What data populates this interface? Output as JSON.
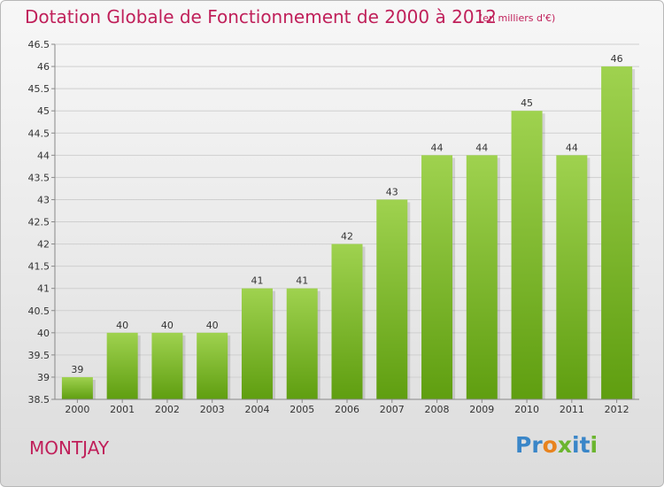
{
  "title": "Dotation Globale de Fonctionnement de 2000 à 2012",
  "unit_note": "(en milliers d'€)",
  "commune": "MONTJAY",
  "logo": {
    "text": "Proxiti",
    "letters": [
      {
        "ch": "P",
        "color": "#3a86c8"
      },
      {
        "ch": "r",
        "color": "#3a86c8"
      },
      {
        "ch": "o",
        "color": "#e8831e"
      },
      {
        "ch": "x",
        "color": "#6bb52e"
      },
      {
        "ch": "i",
        "color": "#3a86c8"
      },
      {
        "ch": "t",
        "color": "#3a86c8"
      },
      {
        "ch": "i",
        "color": "#6bb52e"
      }
    ]
  },
  "colors": {
    "title": "#c0205a",
    "bar_top": "#9fd24f",
    "bar_bottom": "#5f9e10",
    "grid": "#cfcfcf",
    "axis": "#888888"
  },
  "chart_data": {
    "type": "bar",
    "categories": [
      "2000",
      "2001",
      "2002",
      "2003",
      "2004",
      "2005",
      "2006",
      "2007",
      "2008",
      "2009",
      "2010",
      "2011",
      "2012"
    ],
    "values": [
      39,
      40,
      40,
      40,
      41,
      41,
      42,
      43,
      44,
      44,
      45,
      44,
      46
    ],
    "data_labels": [
      "39",
      "40",
      "40",
      "40",
      "41",
      "41",
      "42",
      "43",
      "44",
      "44",
      "45",
      "44",
      "46"
    ],
    "ylim": [
      38.5,
      46.5
    ],
    "yticks": [
      38.5,
      39,
      39.5,
      40,
      40.5,
      41,
      41.5,
      42,
      42.5,
      43,
      43.5,
      44,
      44.5,
      45,
      45.5,
      46,
      46.5
    ],
    "ytick_labels": [
      "38.5",
      "39",
      "39.5",
      "40",
      "40.5",
      "41",
      "41.5",
      "42",
      "42.5",
      "43",
      "43.5",
      "44",
      "44.5",
      "45",
      "45.5",
      "46",
      "46.5"
    ],
    "grid": true,
    "xlabel": "",
    "ylabel": ""
  }
}
